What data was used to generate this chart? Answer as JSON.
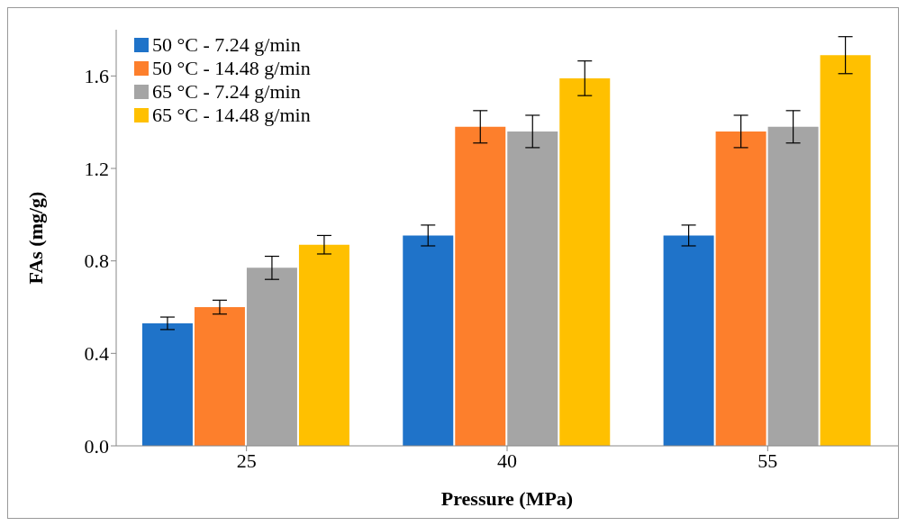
{
  "chart_data": {
    "type": "bar",
    "xlabel": "Pressure (MPa)",
    "ylabel": "FAs (mg/g)",
    "categories": [
      "25",
      "40",
      "55"
    ],
    "series": [
      {
        "name": "50 °C - 7.24 g/min",
        "color": "#1f73c9",
        "values": [
          0.53,
          0.91,
          0.91
        ],
        "errors": [
          0.027,
          0.045,
          0.045
        ]
      },
      {
        "name": "50 °C - 14.48 g/min",
        "color": "#fd7f2c",
        "values": [
          0.6,
          1.38,
          1.36
        ],
        "errors": [
          0.03,
          0.07,
          0.07
        ]
      },
      {
        "name": "65 °C - 7.24 g/min",
        "color": "#a5a5a5",
        "values": [
          0.77,
          1.36,
          1.38
        ],
        "errors": [
          0.05,
          0.07,
          0.07
        ]
      },
      {
        "name": "65 °C - 14.48 g/min",
        "color": "#ffc000",
        "values": [
          0.87,
          1.59,
          1.69
        ],
        "errors": [
          0.04,
          0.075,
          0.08
        ]
      }
    ],
    "ylim": [
      0,
      1.8
    ],
    "yticks": [
      {
        "value": 0,
        "label": "0.0"
      },
      {
        "value": 0.4,
        "label": "0.4"
      },
      {
        "value": 0.8,
        "label": "0.8"
      },
      {
        "value": 1.2,
        "label": "1.2"
      },
      {
        "value": 1.6,
        "label": "1.6"
      }
    ],
    "grid": false,
    "legend": "top left"
  }
}
